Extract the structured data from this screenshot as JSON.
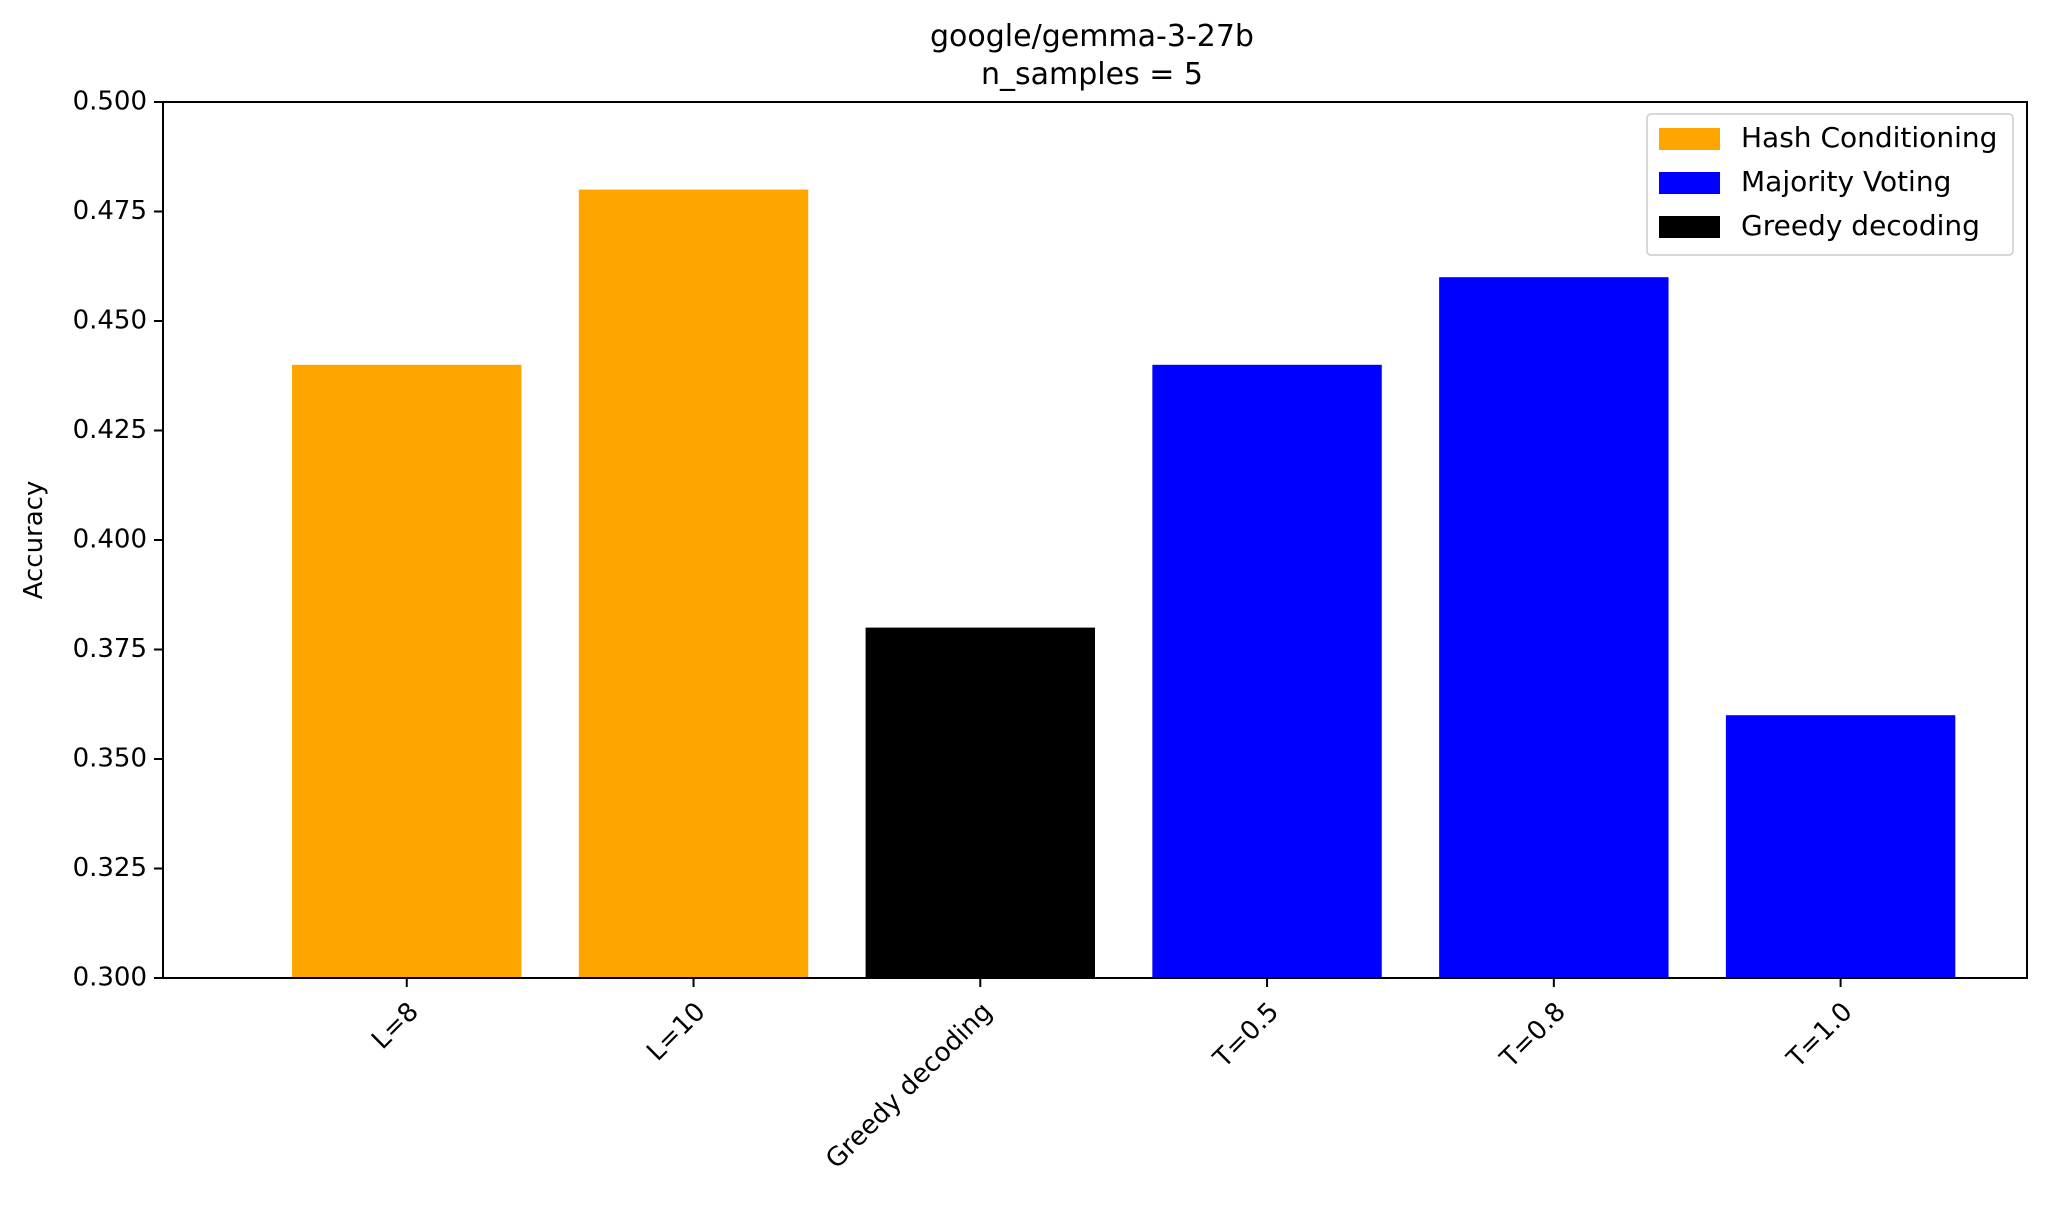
{
  "chart_data": {
    "type": "bar",
    "title": "google/gemma-3-27b",
    "subtitle": "n_samples = 5",
    "xlabel": "",
    "ylabel": "Accuracy",
    "ylim": [
      0.3,
      0.5
    ],
    "yticks": [
      "0.300",
      "0.325",
      "0.350",
      "0.375",
      "0.400",
      "0.425",
      "0.450",
      "0.475",
      "0.500"
    ],
    "ytick_values": [
      0.3,
      0.325,
      0.35,
      0.375,
      0.4,
      0.425,
      0.45,
      0.475,
      0.5
    ],
    "grid": false,
    "legend_position": "top-right",
    "categories": [
      "L=8",
      "L=10",
      "Greedy decoding",
      "T=0.5",
      "T=0.8",
      "T=1.0"
    ],
    "values": [
      0.44,
      0.48,
      0.38,
      0.44,
      0.46,
      0.36
    ],
    "bar_groups": [
      "Hash Conditioning",
      "Hash Conditioning",
      "Greedy decoding",
      "Majority Voting",
      "Majority Voting",
      "Majority Voting"
    ],
    "legend": [
      {
        "name": "Hash Conditioning",
        "color": "#FFA500"
      },
      {
        "name": "Majority Voting",
        "color": "#0000FF"
      },
      {
        "name": "Greedy decoding",
        "color": "#000000"
      }
    ]
  }
}
